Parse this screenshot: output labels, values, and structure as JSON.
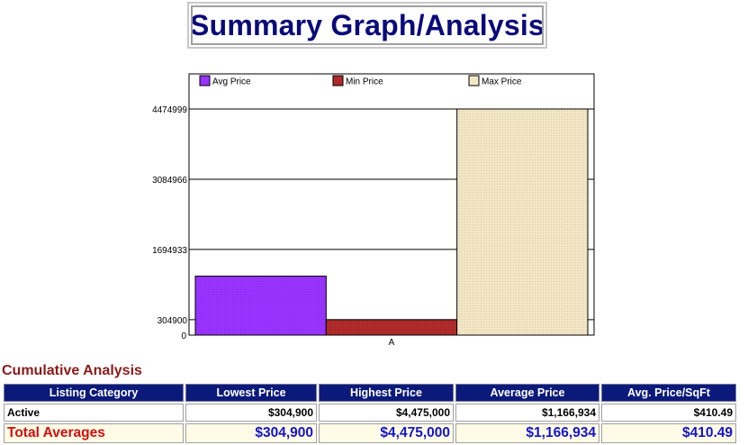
{
  "page_title": "Summary Graph/Analysis",
  "chart_data": {
    "type": "bar",
    "categories": [
      "A"
    ],
    "series": [
      {
        "name": "Avg Price",
        "values": [
          1166934
        ],
        "color": "#9933ff"
      },
      {
        "name": "Min Price",
        "values": [
          304900
        ],
        "color": "#b02a2a"
      },
      {
        "name": "Max Price",
        "values": [
          4475000
        ],
        "color": "#f2e6c4"
      }
    ],
    "yticks": [
      0,
      304900,
      1694933,
      3084966,
      4474999
    ],
    "ylim": [
      0,
      5170000
    ],
    "grid": true,
    "legend": "top"
  },
  "analysis": {
    "section_title": "Cumulative Analysis",
    "columns": [
      "Listing Category",
      "Lowest Price",
      "Highest Price",
      "Average Price",
      "Avg. Price/SqFt"
    ],
    "rows": [
      {
        "category": "Active",
        "lowest": "$304,900",
        "highest": "$4,475,000",
        "average": "$1,166,934",
        "per_sqft": "$410.49"
      }
    ],
    "totals": {
      "label": "Total Averages",
      "lowest": "$304,900",
      "highest": "$4,475,000",
      "average": "$1,166,934",
      "per_sqft": "$410.49"
    }
  }
}
